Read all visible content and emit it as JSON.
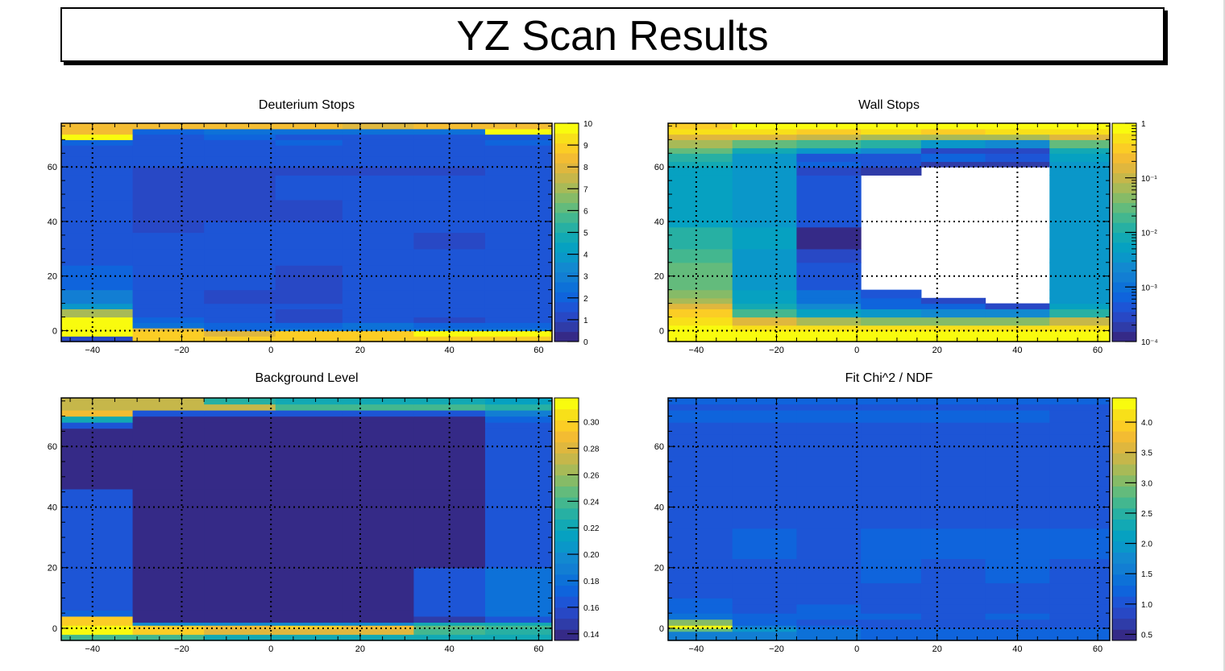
{
  "canvas_title": "YZ Scan Results",
  "palette": [
    "#352a87",
    "#2f3ca8",
    "#2848c5",
    "#1d55d6",
    "#0f64dc",
    "#0d71d8",
    "#127ed3",
    "#1289d0",
    "#0a97c9",
    "#06a1c1",
    "#12a9b4",
    "#27b0a3",
    "#43b78f",
    "#63bb7c",
    "#86bb67",
    "#a8ba57",
    "#c6b74a",
    "#dfb73e",
    "#f3bc32",
    "#fbcd25",
    "#f8e019",
    "#f9fb0e"
  ],
  "chart_data": [
    {
      "type": "heatmap",
      "title": "Deuterium Stops",
      "xlabel": "",
      "ylabel": "",
      "xlim": [
        -47,
        63
      ],
      "ylim": [
        -4,
        76
      ],
      "x_ticks": [
        -40,
        -20,
        0,
        20,
        40,
        60
      ],
      "y_ticks": [
        0,
        20,
        40,
        60
      ],
      "grid": true,
      "colorbar": {
        "scale": "linear",
        "range": [
          0,
          10
        ],
        "tick_labels": [
          "0",
          "1",
          "2",
          "3",
          "4",
          "5",
          "6",
          "7",
          "8",
          "9",
          "10"
        ],
        "tick_values": [
          0,
          1,
          2,
          3,
          4,
          5,
          6,
          7,
          8,
          9,
          10
        ]
      },
      "x_edges": [
        -47,
        -31,
        -15,
        1,
        16,
        32,
        48,
        63
      ],
      "y_edges": [
        -4,
        -2,
        0,
        1,
        3,
        5,
        8,
        10,
        15,
        24,
        30,
        36,
        40,
        48,
        57,
        60,
        64,
        68,
        70,
        72,
        74,
        76
      ],
      "values": [
        [
          1,
          9,
          9,
          9,
          9,
          9,
          9
        ],
        [
          10,
          9,
          8,
          9,
          9,
          10,
          10
        ],
        [
          10,
          8,
          2,
          2.5,
          2.5,
          2.5,
          2.5
        ],
        [
          10,
          2.5,
          2.2,
          2,
          2.3,
          2.2,
          2
        ],
        [
          10,
          2,
          1.5,
          1.3,
          1.5,
          1.3,
          1.6
        ],
        [
          7,
          1.6,
          1.4,
          1.3,
          1.5,
          1.5,
          1.7
        ],
        [
          4,
          1.5,
          1.4,
          1.4,
          1.5,
          1.5,
          1.6
        ],
        [
          3,
          1.7,
          1.3,
          1.3,
          1.5,
          1.7,
          1.8
        ],
        [
          2,
          1.7,
          1.4,
          1.3,
          1.4,
          1.7,
          1.8
        ],
        [
          1.8,
          1.4,
          1.7,
          1.7,
          1.4,
          1.7,
          1.8
        ],
        [
          1.8,
          1.7,
          1.7,
          1.7,
          1.6,
          1.3,
          1.8
        ],
        [
          1.6,
          1.3,
          1.6,
          1.5,
          1.5,
          1.4,
          1.8
        ],
        [
          1.6,
          1.3,
          1.3,
          1.2,
          1.4,
          1.4,
          1.8
        ],
        [
          1.6,
          1.3,
          1.3,
          1.4,
          1.4,
          1.4,
          1.8
        ],
        [
          1.5,
          1.2,
          1.3,
          1.3,
          1.3,
          1.3,
          1.8
        ],
        [
          1.7,
          1.6,
          1.6,
          1.5,
          1.6,
          1.6,
          1.7
        ],
        [
          1.7,
          1.6,
          1.7,
          1.5,
          1.7,
          1.4,
          1.8
        ],
        [
          2,
          1.8,
          1.8,
          2,
          1.8,
          1.8,
          2
        ],
        [
          10,
          1.8,
          2,
          1.8,
          1.8,
          1.8,
          1.8
        ],
        [
          8.5,
          2.2,
          2.3,
          2.3,
          2.3,
          2.3,
          10
        ],
        [
          8.5,
          8.5,
          8.5,
          8.5,
          8,
          8.5,
          8.5
        ]
      ]
    },
    {
      "type": "heatmap",
      "title": "Wall Stops",
      "xlabel": "",
      "ylabel": "",
      "xlim": [
        -47,
        63
      ],
      "ylim": [
        -4,
        76
      ],
      "x_ticks": [
        -40,
        -20,
        0,
        20,
        40,
        60
      ],
      "y_ticks": [
        0,
        20,
        40,
        60
      ],
      "grid": true,
      "colorbar": {
        "scale": "log",
        "range": [
          0.0001,
          1
        ],
        "tick_labels": [
          "10⁻⁴",
          "10⁻³",
          "10⁻²",
          "10⁻¹",
          "1"
        ],
        "tick_values": [
          0.0001,
          0.001,
          0.01,
          0.1,
          1
        ]
      },
      "x_edges": [
        -47,
        -31,
        -15,
        1,
        16,
        32,
        48,
        63
      ],
      "y_edges": [
        -4,
        0,
        2,
        5,
        8,
        10,
        12,
        15,
        25,
        30,
        38,
        57,
        60,
        62,
        65,
        67,
        70,
        72,
        74,
        76
      ],
      "log_values": [
        [
          0,
          0,
          0,
          0,
          0,
          0,
          0
        ],
        [
          0,
          -0.3,
          -0.3,
          -0.3,
          -0.3,
          -0.3,
          -0.2
        ],
        [
          -0.2,
          -0.9,
          -1.2,
          -1.3,
          -1.3,
          -1.3,
          -1
        ],
        [
          -0.4,
          -1.8,
          -2.2,
          -2.4,
          -2.6,
          -2.6,
          -1.9
        ],
        [
          -0.8,
          -2.1,
          -2.7,
          -3.1,
          -3.1,
          -3.6,
          -2.3
        ],
        [
          -1.1,
          -2.2,
          -3.0,
          -3.1,
          -3.5,
          null,
          -2.4
        ],
        [
          -1.3,
          -2.3,
          -3.0,
          -3.4,
          null,
          null,
          -2.4
        ],
        [
          -1.6,
          -2.4,
          -3.4,
          null,
          null,
          null,
          -2.4
        ],
        [
          -1.8,
          -2.4,
          -3.6,
          null,
          null,
          null,
          -2.4
        ],
        [
          -2.0,
          -2.3,
          -3.9,
          null,
          null,
          null,
          -2.4
        ],
        [
          -2.2,
          -2.5,
          -3.3,
          null,
          null,
          null,
          -2.4
        ],
        [
          -2.2,
          -2.5,
          -3.5,
          -3.7,
          null,
          null,
          -2.4
        ],
        [
          -2.1,
          -2.4,
          -3.2,
          -3.3,
          -3.8,
          -3.8,
          -2.4
        ],
        [
          -1.9,
          -2.4,
          -3.3,
          -3.3,
          -3.2,
          -3.4,
          -2.3
        ],
        [
          -1.6,
          -2.1,
          -2.5,
          -2.7,
          -3.6,
          -3.6,
          -2.1
        ],
        [
          -1.2,
          -1.6,
          -1.8,
          -2.0,
          -2.5,
          -2.6,
          -1.6
        ],
        [
          -0.8,
          -0.9,
          -1.0,
          -1.1,
          -1.2,
          -1.2,
          -0.9
        ],
        [
          -0.3,
          -0.3,
          -0.4,
          -0.3,
          -0.4,
          -0.3,
          -0.3
        ],
        [
          -0.4,
          0,
          0,
          0,
          0,
          0,
          0
        ]
      ]
    },
    {
      "type": "heatmap",
      "title": "Background Level",
      "xlabel": "",
      "ylabel": "",
      "xlim": [
        -47,
        63
      ],
      "ylim": [
        -4,
        76
      ],
      "x_ticks": [
        -40,
        -20,
        0,
        20,
        40,
        60
      ],
      "y_ticks": [
        0,
        20,
        40,
        60
      ],
      "grid": true,
      "colorbar": {
        "scale": "linear",
        "range": [
          0.135,
          0.318
        ],
        "tick_labels": [
          "0.14",
          "0.16",
          "0.18",
          "0.20",
          "0.22",
          "0.24",
          "0.26",
          "0.28",
          "0.30"
        ],
        "tick_values": [
          0.14,
          0.16,
          0.18,
          0.2,
          0.22,
          0.24,
          0.26,
          0.28,
          0.3
        ]
      },
      "x_edges": [
        -47,
        -31,
        -15,
        1,
        16,
        32,
        48,
        63
      ],
      "y_edges": [
        -4,
        -2,
        0,
        1,
        2,
        4,
        6,
        20,
        46,
        66,
        68,
        70,
        72,
        74,
        76
      ],
      "values": [
        [
          0.24,
          0.24,
          0.22,
          0.22,
          0.22,
          0.22,
          0.22
        ],
        [
          0.31,
          0.3,
          0.28,
          0.28,
          0.28,
          0.24,
          0.23
        ],
        [
          0.31,
          0.3,
          0.29,
          0.3,
          0.29,
          0.25,
          0.24
        ],
        [
          0.3,
          0.2,
          0.2,
          0.2,
          0.2,
          0.22,
          0.22
        ],
        [
          0.3,
          0.14,
          0.14,
          0.14,
          0.14,
          0.15,
          0.16
        ],
        [
          0.17,
          0.14,
          0.14,
          0.14,
          0.14,
          0.16,
          0.18
        ],
        [
          0.16,
          0.14,
          0.14,
          0.14,
          0.14,
          0.16,
          0.18
        ],
        [
          0.16,
          0.14,
          0.14,
          0.14,
          0.14,
          0.14,
          0.16
        ],
        [
          0.14,
          0.14,
          0.14,
          0.14,
          0.14,
          0.14,
          0.16
        ],
        [
          0.16,
          0.14,
          0.14,
          0.14,
          0.14,
          0.14,
          0.16
        ],
        [
          0.22,
          0.14,
          0.14,
          0.14,
          0.14,
          0.14,
          0.17
        ],
        [
          0.29,
          0.16,
          0.16,
          0.16,
          0.16,
          0.16,
          0.19
        ],
        [
          0.27,
          0.27,
          0.27,
          0.24,
          0.24,
          0.24,
          0.23
        ],
        [
          0.27,
          0.27,
          0.23,
          0.22,
          0.22,
          0.22,
          0.21
        ]
      ]
    },
    {
      "type": "heatmap",
      "title": "Fit Chi^2 / NDF",
      "xlabel": "",
      "ylabel": "",
      "xlim": [
        -47,
        63
      ],
      "ylim": [
        -4,
        76
      ],
      "x_ticks": [
        -40,
        -20,
        0,
        20,
        40,
        60
      ],
      "y_ticks": [
        0,
        20,
        40,
        60
      ],
      "grid": true,
      "colorbar": {
        "scale": "linear",
        "range": [
          0.4,
          4.4
        ],
        "tick_labels": [
          "0.5",
          "1.0",
          "1.5",
          "2.0",
          "2.5",
          "3.0",
          "3.5",
          "4.0"
        ],
        "tick_values": [
          0.5,
          1.0,
          1.5,
          2.0,
          2.5,
          3.0,
          3.5,
          4.0
        ]
      },
      "x_edges": [
        -47,
        -31,
        -15,
        1,
        16,
        32,
        48,
        63
      ],
      "y_edges": [
        -4,
        -1,
        0,
        1,
        3,
        5,
        8,
        10,
        15,
        23,
        33,
        47,
        57,
        60,
        64,
        68,
        72,
        74,
        76
      ],
      "values": [
        [
          1.6,
          1.5,
          1.4,
          1.3,
          1.3,
          1.3,
          1.3
        ],
        [
          2.8,
          2.0,
          1.4,
          1.2,
          1.2,
          1.2,
          1.3
        ],
        [
          4.3,
          1.6,
          1.2,
          1.1,
          1.1,
          1.1,
          1.1
        ],
        [
          3.0,
          1.2,
          1.1,
          1.0,
          1.0,
          1.0,
          1.1
        ],
        [
          1.4,
          1.2,
          1.3,
          1.2,
          1.1,
          1.2,
          1.1
        ],
        [
          1.2,
          1.1,
          1.2,
          1.1,
          1.1,
          1.1,
          1.1
        ],
        [
          1.2,
          1.1,
          1.1,
          1.1,
          1.0,
          1.0,
          1.1
        ],
        [
          1.1,
          1.1,
          1.0,
          1.0,
          1.0,
          1.0,
          1.1
        ],
        [
          1.0,
          1.0,
          1.1,
          1.2,
          1.1,
          1.2,
          1.0
        ],
        [
          1.0,
          1.2,
          1.1,
          1.2,
          1.2,
          1.2,
          1.2
        ],
        [
          1.0,
          1.0,
          1.0,
          1.0,
          1.1,
          1.1,
          1.1
        ],
        [
          1.1,
          1.1,
          1.1,
          1.1,
          1.1,
          1.1,
          1.1
        ],
        [
          1.1,
          1.1,
          1.1,
          1.1,
          1.0,
          1.1,
          1.1
        ],
        [
          1.1,
          1.1,
          1.1,
          1.0,
          1.0,
          1.0,
          1.1
        ],
        [
          1.1,
          1.0,
          1.1,
          1.1,
          1.0,
          1.0,
          1.1
        ],
        [
          1.2,
          1.2,
          1.2,
          1.2,
          1.2,
          1.2,
          1.1
        ],
        [
          1.1,
          1.1,
          1.1,
          1.1,
          1.1,
          1.1,
          1.1
        ],
        [
          1.3,
          1.3,
          1.2,
          1.2,
          1.2,
          1.2,
          1.2
        ]
      ]
    }
  ]
}
